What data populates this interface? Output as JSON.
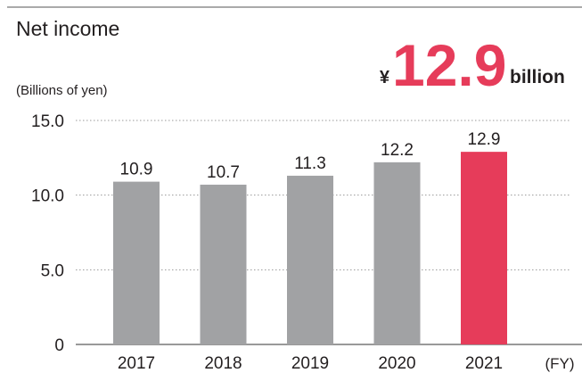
{
  "chart_data": {
    "type": "bar",
    "title": "Net income",
    "highlight": {
      "prefix": "¥",
      "value": "12.9",
      "suffix": "billion"
    },
    "y_label": "(Billions of yen)",
    "x_label": "(FY)",
    "categories": [
      "2017",
      "2018",
      "2019",
      "2020",
      "2021"
    ],
    "values": [
      10.9,
      10.7,
      11.3,
      12.2,
      12.9
    ],
    "colors": [
      "#a1a2a4",
      "#a1a2a4",
      "#a1a2a4",
      "#a1a2a4",
      "#e63c5a"
    ],
    "ylim": [
      0,
      15
    ],
    "yticks": [
      0,
      {
        "value": 5,
        "label": "5.0"
      },
      {
        "value": 10,
        "label": "10.0"
      },
      {
        "value": 15,
        "label": "15.0"
      }
    ],
    "grid": true
  }
}
